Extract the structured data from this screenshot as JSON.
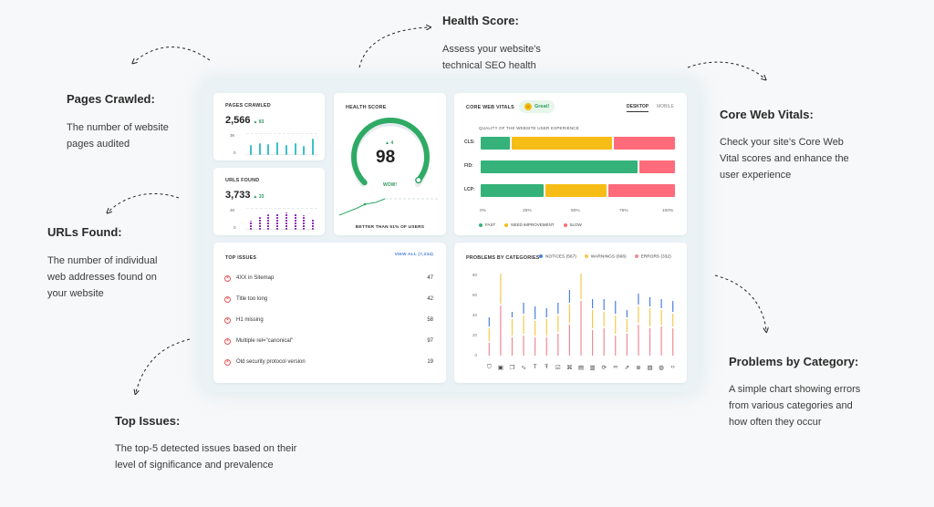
{
  "annotations": {
    "pages_crawled": {
      "title": "Pages Crawled:",
      "desc1": "The number of website",
      "desc2": "pages audited"
    },
    "urls_found": {
      "title": "URLs Found:",
      "desc1": "The number of individual",
      "desc2": "web addresses found on",
      "desc3": "your website"
    },
    "top_issues": {
      "title": "Top Issues:",
      "desc1": "The top-5 detected issues based on their",
      "desc2": "level of significance and prevalence"
    },
    "health_score": {
      "title": "Health Score:",
      "desc1": "Assess your website's",
      "desc2": "technical SEO health"
    },
    "core_web_vitals": {
      "title": "Core Web Vitals:",
      "desc1": "Check your site’s Core Web",
      "desc2": "Vital scores and enhance the",
      "desc3": "user experience"
    },
    "problems_by_category": {
      "title": "Problems by Category:",
      "desc1": "A simple chart showing errors",
      "desc2": "from various categories and",
      "desc3": "how often they occur"
    }
  },
  "pages_crawled": {
    "label": "PAGES CRAWLED",
    "value": "2,566",
    "delta": "▲ 83",
    "y_top": "3K",
    "y_bottom": "0",
    "bars": [
      0.45,
      0.55,
      0.5,
      0.6,
      0.45,
      0.55,
      0.4,
      0.75
    ]
  },
  "urls_found": {
    "label": "URLS FOUND",
    "value": "3,733",
    "delta": "▲ 33",
    "y_top": "3K",
    "y_bottom": "0",
    "bars": [
      0.4,
      0.6,
      0.7,
      0.75,
      0.8,
      0.75,
      0.65,
      0.5
    ]
  },
  "health_score": {
    "label": "HEALTH SCORE",
    "value": "98",
    "delta": "▲ 4",
    "badge": "WOW!",
    "footer": "BETTER THAN 51% OF USERS",
    "score_fraction": 0.98,
    "color": "#2faa64"
  },
  "core_web_vitals": {
    "label": "CORE WEB VITALS",
    "badge": "Great!",
    "tab_desktop": "DESKTOP",
    "tab_mobile": "MOBILE",
    "subtitle": "QUALITY OF THE WEBSITE USER EXPERIENCE",
    "rows": [
      {
        "name": "CLS:",
        "fast": 16,
        "need": 52,
        "slow": 32
      },
      {
        "name": "FID:",
        "fast": 81,
        "need": 0,
        "slow": 19
      },
      {
        "name": "LCP:",
        "fast": 33,
        "need": 32,
        "slow": 35
      }
    ],
    "ticks": [
      "0%",
      "25%",
      "50%",
      "75%",
      "100%"
    ],
    "legend": {
      "fast": "FAST",
      "need": "NEED IMPROVEMENT",
      "slow": "SLOW"
    },
    "colors": {
      "fast": "#35b27a",
      "need": "#f6bd16",
      "slow": "#ff6b7a"
    }
  },
  "top_issues": {
    "label": "TOP ISSUES",
    "view_all": "VIEW ALL (7,234)",
    "items": [
      {
        "name": "4XX in Sitemap",
        "count": "47"
      },
      {
        "name": "Title too long",
        "count": "42"
      },
      {
        "name": "H1 missing",
        "count": "58"
      },
      {
        "name": "Multiple rel=\"canonical\"",
        "count": "97"
      },
      {
        "name": "Old security protocol version",
        "count": "19"
      }
    ]
  },
  "problems": {
    "label": "PROBLEMS BY CATEGORIES",
    "legend_notices": "NOTICES (567)",
    "legend_warnings": "WARNINGS (666)",
    "legend_errors": "ERRORS (332)",
    "colors": {
      "notices": "#4a7fe0",
      "warnings": "#f6c94b",
      "errors": "#f08a96"
    },
    "y_ticks": [
      "80",
      "60",
      "40",
      "20",
      "0"
    ],
    "icons": [
      "shield-icon",
      "image-icon",
      "copy-icon",
      "pulse-icon",
      "text-icon",
      "font-icon",
      "checkbox-icon",
      "code-icon",
      "document-icon",
      "bars-icon",
      "refresh-icon",
      "link-icon",
      "external-link-icon",
      "globe-icon",
      "image-broken-icon",
      "globe-alt-icon",
      "brackets-icon"
    ],
    "icon_glyphs": [
      "⛉",
      "▣",
      "❐",
      "∿",
      "T",
      "Ŧ",
      "☑",
      "⌘",
      "▤",
      "▥",
      "⟳",
      "∞",
      "⇗",
      "⊕",
      "▨",
      "◍",
      "‹›"
    ]
  }
}
